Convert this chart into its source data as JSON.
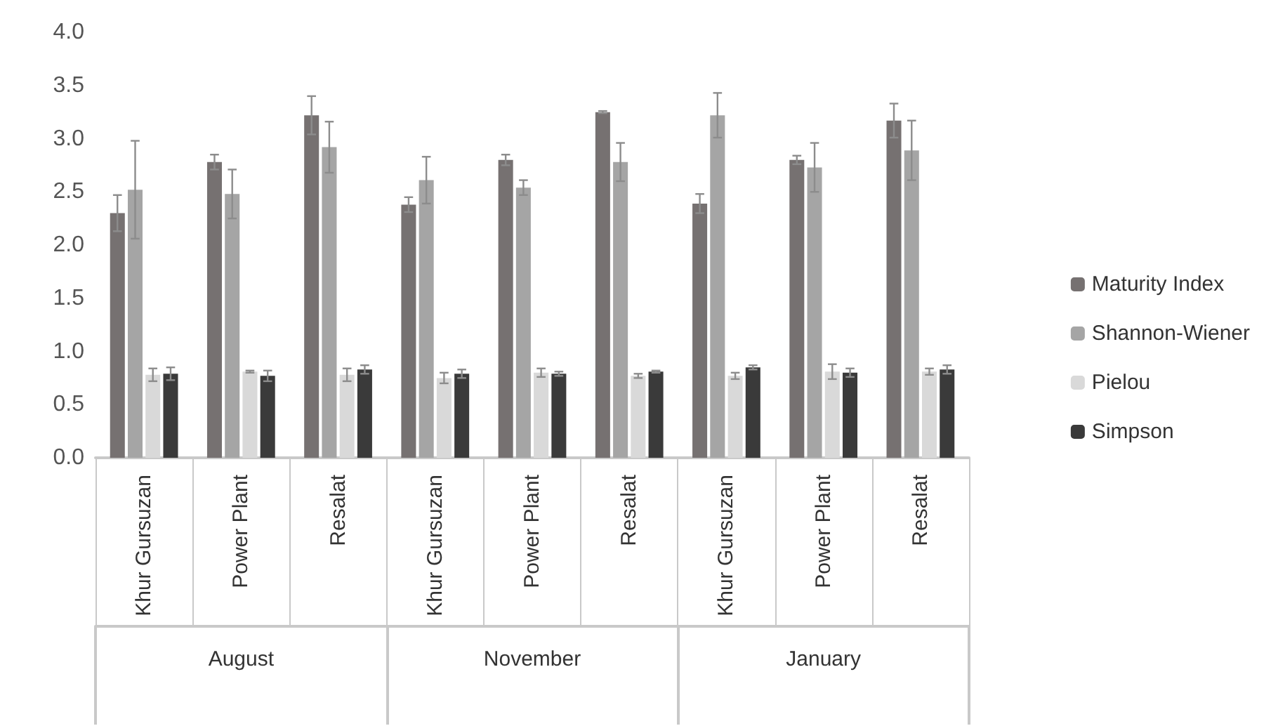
{
  "chart_data": {
    "type": "bar",
    "categories": [
      "Khur Gursuzan",
      "Power Plant",
      "Resalat",
      "Khur Gursuzan",
      "Power Plant",
      "Resalat",
      "Khur Gursuzan",
      "Power Plant",
      "Resalat"
    ],
    "annotations": [
      "August",
      "November",
      "January"
    ],
    "series": [
      {
        "name": "Maturity Index",
        "color": "#767171",
        "values": [
          2.3,
          2.78,
          3.22,
          2.38,
          2.8,
          3.25,
          2.39,
          2.8,
          3.17
        ],
        "errors": [
          0.17,
          0.07,
          0.18,
          0.07,
          0.05,
          0.01,
          0.09,
          0.04,
          0.16
        ]
      },
      {
        "name": "Shannon-Wiener",
        "color": "#a5a5a5",
        "values": [
          2.52,
          2.48,
          2.92,
          2.61,
          2.54,
          2.78,
          3.22,
          2.73,
          2.89
        ],
        "errors": [
          0.46,
          0.23,
          0.24,
          0.22,
          0.07,
          0.18,
          0.21,
          0.23,
          0.28
        ]
      },
      {
        "name": "Pielou",
        "color": "#d9d9d9",
        "values": [
          0.78,
          0.81,
          0.78,
          0.75,
          0.8,
          0.77,
          0.77,
          0.81,
          0.81
        ],
        "errors": [
          0.06,
          0.01,
          0.06,
          0.05,
          0.04,
          0.02,
          0.03,
          0.07,
          0.03
        ]
      },
      {
        "name": "Simpson",
        "color": "#3a3a3a",
        "values": [
          0.79,
          0.77,
          0.83,
          0.79,
          0.79,
          0.81,
          0.85,
          0.8,
          0.83
        ],
        "errors": [
          0.06,
          0.05,
          0.04,
          0.04,
          0.02,
          0.01,
          0.02,
          0.04,
          0.04
        ]
      }
    ],
    "ylim": [
      0,
      4
    ],
    "yticks": [
      {
        "value": 0,
        "label": "0.0"
      },
      {
        "value": 0.5,
        "label": "0.5"
      },
      {
        "value": 1,
        "label": "1.0"
      },
      {
        "value": 1.5,
        "label": "1.5"
      },
      {
        "value": 2,
        "label": "2.0"
      },
      {
        "value": 2.5,
        "label": "2.5"
      },
      {
        "value": 3,
        "label": "3.0"
      },
      {
        "value": 3.5,
        "label": "3.5"
      },
      {
        "value": 4,
        "label": "4.0"
      }
    ],
    "grid": false,
    "legend": "right"
  }
}
